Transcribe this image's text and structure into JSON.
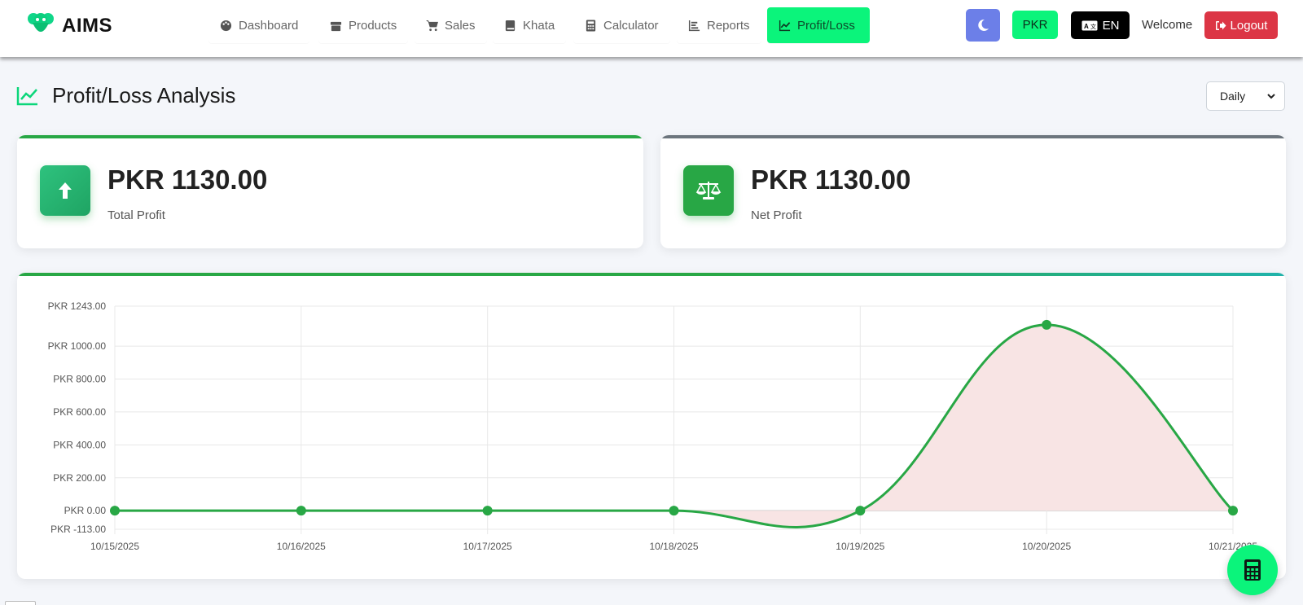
{
  "app": {
    "brand": "AIMS"
  },
  "nav": {
    "items": [
      {
        "label": "Dashboard",
        "icon": "palette-icon"
      },
      {
        "label": "Products",
        "icon": "box-icon"
      },
      {
        "label": "Sales",
        "icon": "cart-icon"
      },
      {
        "label": "Khata",
        "icon": "book-icon"
      },
      {
        "label": "Calculator",
        "icon": "calculator-icon"
      },
      {
        "label": "Reports",
        "icon": "bar-chart-icon"
      },
      {
        "label": "Profit/Loss",
        "icon": "line-chart-icon",
        "active": true
      }
    ],
    "currency": "PKR",
    "language": "EN",
    "welcome": "Welcome",
    "logout": "Logout"
  },
  "page": {
    "title": "Profit/Loss Analysis",
    "period": "Daily"
  },
  "cards": [
    {
      "value": "PKR 1130.00",
      "label": "Total Profit",
      "icon": "arrow-up-icon",
      "accent": "#28a745"
    },
    {
      "value": "PKR 1130.00",
      "label": "Net Profit",
      "icon": "balance-scale-icon",
      "accent": "#6c757d"
    }
  ],
  "chart_data": {
    "type": "line",
    "x": [
      "10/15/2025",
      "10/16/2025",
      "10/17/2025",
      "10/18/2025",
      "10/19/2025",
      "10/20/2025",
      "10/21/2025"
    ],
    "series": [
      {
        "values": [
          0,
          0,
          0,
          0,
          0,
          1130,
          0
        ],
        "color": "#28a745",
        "fill": "#f8e4e4"
      }
    ],
    "ylim": [
      -113,
      1243
    ],
    "yticks": [
      {
        "value": 1243,
        "label": "PKR 1243.00"
      },
      {
        "value": 1000,
        "label": "PKR 1000.00"
      },
      {
        "value": 800,
        "label": "PKR 800.00"
      },
      {
        "value": 600,
        "label": "PKR 600.00"
      },
      {
        "value": 400,
        "label": "PKR 400.00"
      },
      {
        "value": 200,
        "label": "PKR 200.00"
      },
      {
        "value": 0,
        "label": "PKR 0.00"
      },
      {
        "value": -113,
        "label": "PKR -113.00"
      }
    ],
    "grid": true
  },
  "colors": {
    "accent": "#0bf47b",
    "danger": "#dc3545",
    "moon": "#6c7fe8"
  }
}
